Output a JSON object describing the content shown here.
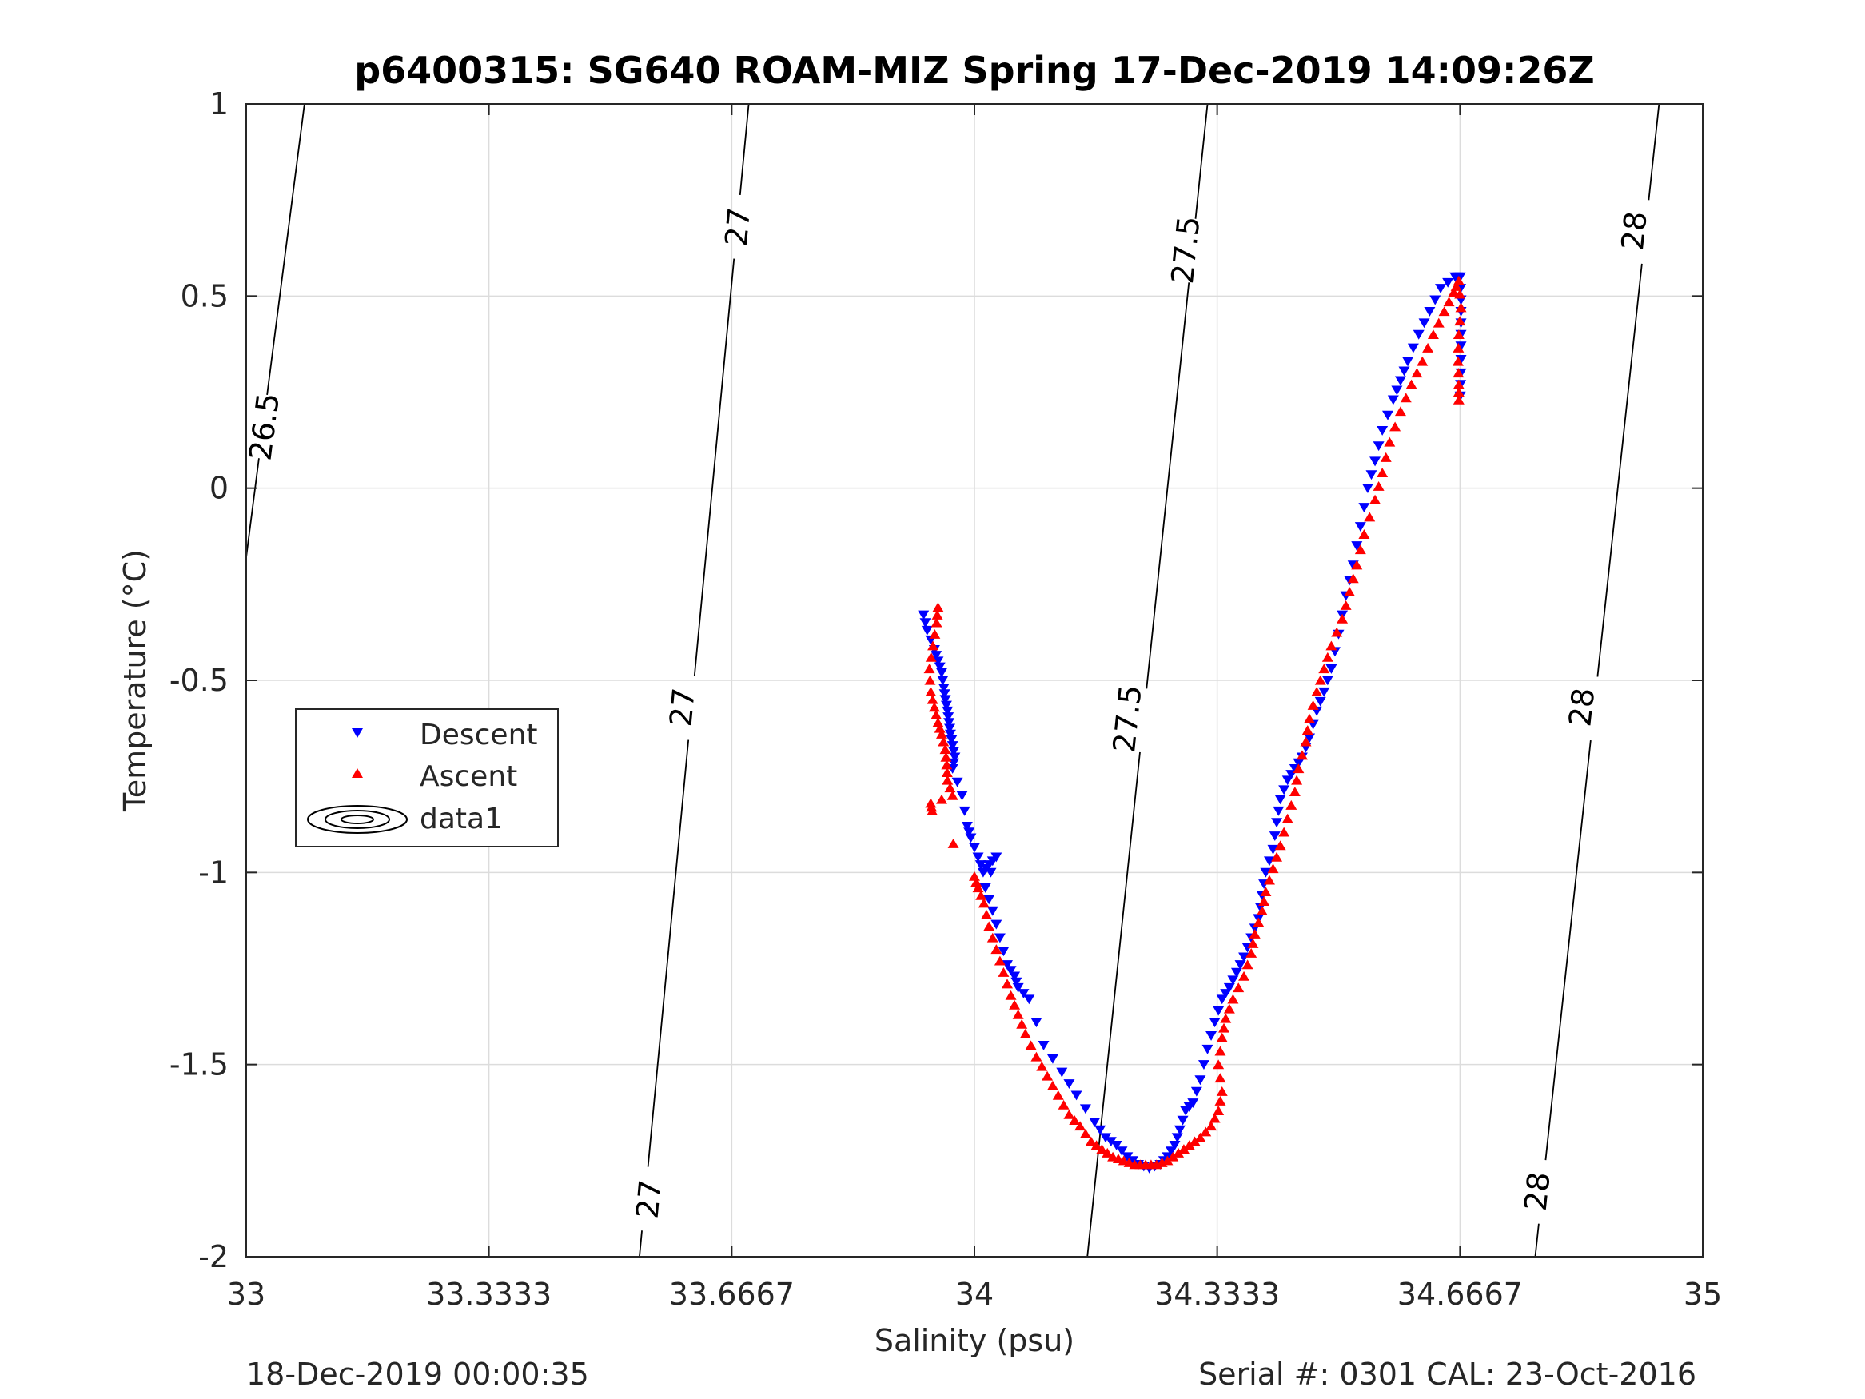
{
  "figure": {
    "footer_left": "18-Dec-2019 00:00:35",
    "footer_right": "Serial #: 0301  CAL: 23-Oct-2016"
  },
  "colors": {
    "descent": "#0000ff",
    "ascent": "#ff0000",
    "contour": "#000000",
    "grid": "#dcdcdc",
    "axes": "#262626"
  },
  "chart_data": {
    "type": "scatter",
    "title": "p6400315: SG640 ROAM-MIZ Spring 17-Dec-2019 14:09:26Z",
    "xlabel": "Salinity (psu)",
    "ylabel": "Temperature (°C)",
    "xlim": [
      33,
      35
    ],
    "ylim": [
      -2,
      1
    ],
    "grid": true,
    "legend_position": "middle-left",
    "xticks": [
      33,
      33.3333,
      33.6667,
      34,
      34.3333,
      34.6667,
      35
    ],
    "xtick_labels": [
      "33",
      "33.3333",
      "33.6667",
      "34",
      "34.3333",
      "34.6667",
      "35"
    ],
    "yticks": [
      -2,
      -1.5,
      -1,
      -0.5,
      0,
      0.5,
      1
    ],
    "ytick_labels": [
      "-2",
      "-1.5",
      "-1",
      "-0.5",
      "0",
      "0.5",
      "1"
    ],
    "legend": [
      "Descent",
      "Ascent",
      "data1"
    ],
    "density_contours": [
      {
        "label": "26.5",
        "lines": [
          [
            33.0,
            -0.18
          ],
          [
            33.08,
            1.0
          ]
        ],
        "labels_at": [
          [
            33.025,
            0.16
          ]
        ]
      },
      {
        "label": "27",
        "lines": [
          [
            33.54,
            -2.0
          ],
          [
            33.69,
            1.0
          ]
        ],
        "labels_at": [
          [
            33.553,
            -1.85
          ],
          [
            33.599,
            -0.57
          ],
          [
            33.675,
            0.68
          ]
        ]
      },
      {
        "label": "27.5",
        "lines": [
          [
            34.155,
            -2.0
          ],
          [
            34.32,
            1.0
          ]
        ],
        "labels_at": [
          [
            34.21,
            -0.6
          ],
          [
            34.29,
            0.62
          ]
        ]
      },
      {
        "label": "28",
        "lines": [
          [
            34.77,
            -2.0
          ],
          [
            34.94,
            1.0
          ]
        ],
        "labels_at": [
          [
            34.773,
            -1.83
          ],
          [
            34.834,
            -0.57
          ],
          [
            34.906,
            0.67
          ]
        ]
      }
    ],
    "series": [
      {
        "name": "Descent",
        "marker": "triangle-down",
        "points": [
          [
            33.93,
            -0.33
          ],
          [
            33.935,
            -0.37
          ],
          [
            33.945,
            -0.42
          ],
          [
            33.95,
            -0.45
          ],
          [
            33.955,
            -0.48
          ],
          [
            33.958,
            -0.52
          ],
          [
            33.96,
            -0.55
          ],
          [
            33.963,
            -0.58
          ],
          [
            33.965,
            -0.61
          ],
          [
            33.967,
            -0.64
          ],
          [
            33.97,
            -0.67
          ],
          [
            33.973,
            -0.7
          ],
          [
            33.97,
            -0.73
          ],
          [
            33.983,
            -0.8
          ],
          [
            33.99,
            -0.88
          ],
          [
            33.995,
            -0.91
          ],
          [
            34.005,
            -0.96
          ],
          [
            34.012,
            -1.0
          ],
          [
            34.02,
            -0.98
          ],
          [
            34.03,
            -0.96
          ],
          [
            34.015,
            -1.04
          ],
          [
            34.025,
            -1.1
          ],
          [
            34.035,
            -1.17
          ],
          [
            34.045,
            -1.24
          ],
          [
            34.055,
            -1.27
          ],
          [
            34.06,
            -1.3
          ],
          [
            34.075,
            -1.33
          ],
          [
            34.095,
            -1.45
          ],
          [
            34.12,
            -1.52
          ],
          [
            34.14,
            -1.58
          ],
          [
            34.165,
            -1.65
          ],
          [
            34.18,
            -1.69
          ],
          [
            34.195,
            -1.71
          ],
          [
            34.21,
            -1.74
          ],
          [
            34.225,
            -1.76
          ],
          [
            34.24,
            -1.77
          ],
          [
            34.255,
            -1.76
          ],
          [
            34.265,
            -1.74
          ],
          [
            34.275,
            -1.71
          ],
          [
            34.282,
            -1.67
          ],
          [
            34.29,
            -1.62
          ],
          [
            34.3,
            -1.6
          ],
          [
            34.31,
            -1.54
          ],
          [
            34.32,
            -1.46
          ],
          [
            34.33,
            -1.39
          ],
          [
            34.34,
            -1.33
          ],
          [
            34.35,
            -1.3
          ],
          [
            34.36,
            -1.26
          ],
          [
            34.37,
            -1.22
          ],
          [
            34.38,
            -1.17
          ],
          [
            34.39,
            -1.12
          ],
          [
            34.395,
            -1.06
          ],
          [
            34.4,
            -1.0
          ],
          [
            34.41,
            -0.94
          ],
          [
            34.415,
            -0.87
          ],
          [
            34.42,
            -0.81
          ],
          [
            34.43,
            -0.76
          ],
          [
            34.44,
            -0.73
          ],
          [
            34.45,
            -0.7
          ],
          [
            34.46,
            -0.65
          ],
          [
            34.47,
            -0.58
          ],
          [
            34.48,
            -0.53
          ],
          [
            34.49,
            -0.47
          ],
          [
            34.5,
            -0.38
          ],
          [
            34.51,
            -0.28
          ],
          [
            34.52,
            -0.2
          ],
          [
            34.53,
            -0.1
          ],
          [
            34.54,
            0.0
          ],
          [
            34.55,
            0.07
          ],
          [
            34.56,
            0.15
          ],
          [
            34.575,
            0.23
          ],
          [
            34.585,
            0.28
          ],
          [
            34.595,
            0.33
          ],
          [
            34.61,
            0.4
          ],
          [
            34.625,
            0.46
          ],
          [
            34.64,
            0.52
          ],
          [
            34.66,
            0.55
          ],
          [
            34.667,
            0.55
          ],
          [
            34.668,
            0.49
          ],
          [
            34.668,
            0.43
          ],
          [
            34.668,
            0.37
          ],
          [
            34.668,
            0.3
          ],
          [
            34.667,
            0.24
          ]
        ]
      },
      {
        "name": "Ascent",
        "marker": "triangle-up",
        "points": [
          [
            33.95,
            -0.31
          ],
          [
            33.948,
            -0.35
          ],
          [
            33.943,
            -0.41
          ],
          [
            33.938,
            -0.47
          ],
          [
            33.94,
            -0.53
          ],
          [
            33.945,
            -0.57
          ],
          [
            33.95,
            -0.61
          ],
          [
            33.955,
            -0.64
          ],
          [
            33.96,
            -0.68
          ],
          [
            33.962,
            -0.72
          ],
          [
            33.963,
            -0.76
          ],
          [
            33.97,
            -0.8
          ],
          [
            33.94,
            -0.82
          ],
          [
            33.942,
            -0.84
          ],
          [
            34.0,
            -1.01
          ],
          [
            34.005,
            -1.04
          ],
          [
            34.013,
            -1.08
          ],
          [
            34.02,
            -1.14
          ],
          [
            34.03,
            -1.2
          ],
          [
            34.04,
            -1.26
          ],
          [
            34.05,
            -1.32
          ],
          [
            34.06,
            -1.37
          ],
          [
            34.07,
            -1.42
          ],
          [
            34.085,
            -1.48
          ],
          [
            34.1,
            -1.53
          ],
          [
            34.115,
            -1.58
          ],
          [
            34.13,
            -1.63
          ],
          [
            34.145,
            -1.66
          ],
          [
            34.16,
            -1.7
          ],
          [
            34.175,
            -1.72
          ],
          [
            34.19,
            -1.74
          ],
          [
            34.205,
            -1.75
          ],
          [
            34.22,
            -1.76
          ],
          [
            34.235,
            -1.76
          ],
          [
            34.25,
            -1.76
          ],
          [
            34.265,
            -1.75
          ],
          [
            34.28,
            -1.73
          ],
          [
            34.295,
            -1.71
          ],
          [
            34.31,
            -1.69
          ],
          [
            34.325,
            -1.66
          ],
          [
            34.335,
            -1.62
          ],
          [
            34.34,
            -1.57
          ],
          [
            34.335,
            -1.5
          ],
          [
            34.34,
            -1.43
          ],
          [
            34.345,
            -1.38
          ],
          [
            34.355,
            -1.33
          ],
          [
            34.37,
            -1.27
          ],
          [
            34.38,
            -1.21
          ],
          [
            34.385,
            -1.16
          ],
          [
            34.395,
            -1.1
          ],
          [
            34.4,
            -1.05
          ],
          [
            34.41,
            -0.99
          ],
          [
            34.42,
            -0.93
          ],
          [
            34.43,
            -0.86
          ],
          [
            34.44,
            -0.79
          ],
          [
            34.445,
            -0.73
          ],
          [
            34.455,
            -0.66
          ],
          [
            34.46,
            -0.6
          ],
          [
            34.47,
            -0.53
          ],
          [
            34.48,
            -0.47
          ],
          [
            34.49,
            -0.41
          ],
          [
            34.505,
            -0.34
          ],
          [
            34.515,
            -0.27
          ],
          [
            34.525,
            -0.2
          ],
          [
            34.535,
            -0.12
          ],
          [
            34.55,
            -0.03
          ],
          [
            34.56,
            0.04
          ],
          [
            34.57,
            0.12
          ],
          [
            34.585,
            0.2
          ],
          [
            34.6,
            0.27
          ],
          [
            34.615,
            0.33
          ],
          [
            34.63,
            0.4
          ],
          [
            34.645,
            0.46
          ],
          [
            34.658,
            0.51
          ],
          [
            34.665,
            0.54
          ],
          [
            34.668,
            0.47
          ],
          [
            34.665,
            0.4
          ],
          [
            34.664,
            0.33
          ],
          [
            34.665,
            0.27
          ],
          [
            34.665,
            0.23
          ]
        ]
      }
    ]
  }
}
